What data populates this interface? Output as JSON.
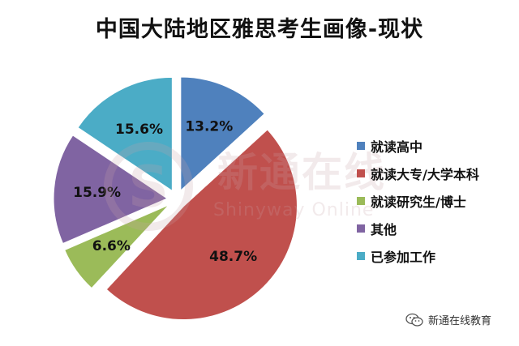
{
  "chart_data": {
    "type": "pie",
    "title": "中国大陆地区雅思考生画像-现状",
    "slices": [
      {
        "label": "就读高中",
        "value": 13.2,
        "display": "13.2%",
        "color": "#4F81BD"
      },
      {
        "label": "就读大专/大学本科",
        "value": 48.7,
        "display": "48.7%",
        "color": "#C0504D"
      },
      {
        "label": "就读研究生/博士",
        "value": 6.6,
        "display": "6.6%",
        "color": "#9BBB59"
      },
      {
        "label": "其他",
        "value": 15.9,
        "display": "15.9%",
        "color": "#8064A2"
      },
      {
        "label": "已参加工作",
        "value": 15.6,
        "display": "15.6%",
        "color": "#4BACC6"
      }
    ],
    "start_angle_deg": 0,
    "direction": "clockwise",
    "exploded": true,
    "legend_position": "right"
  },
  "watermark": {
    "text": "新通在线",
    "subtext": "Shinyway Online",
    "logo_letter": "S"
  },
  "footer": {
    "text": "新通在线教育",
    "icon": "wechat-icon"
  }
}
